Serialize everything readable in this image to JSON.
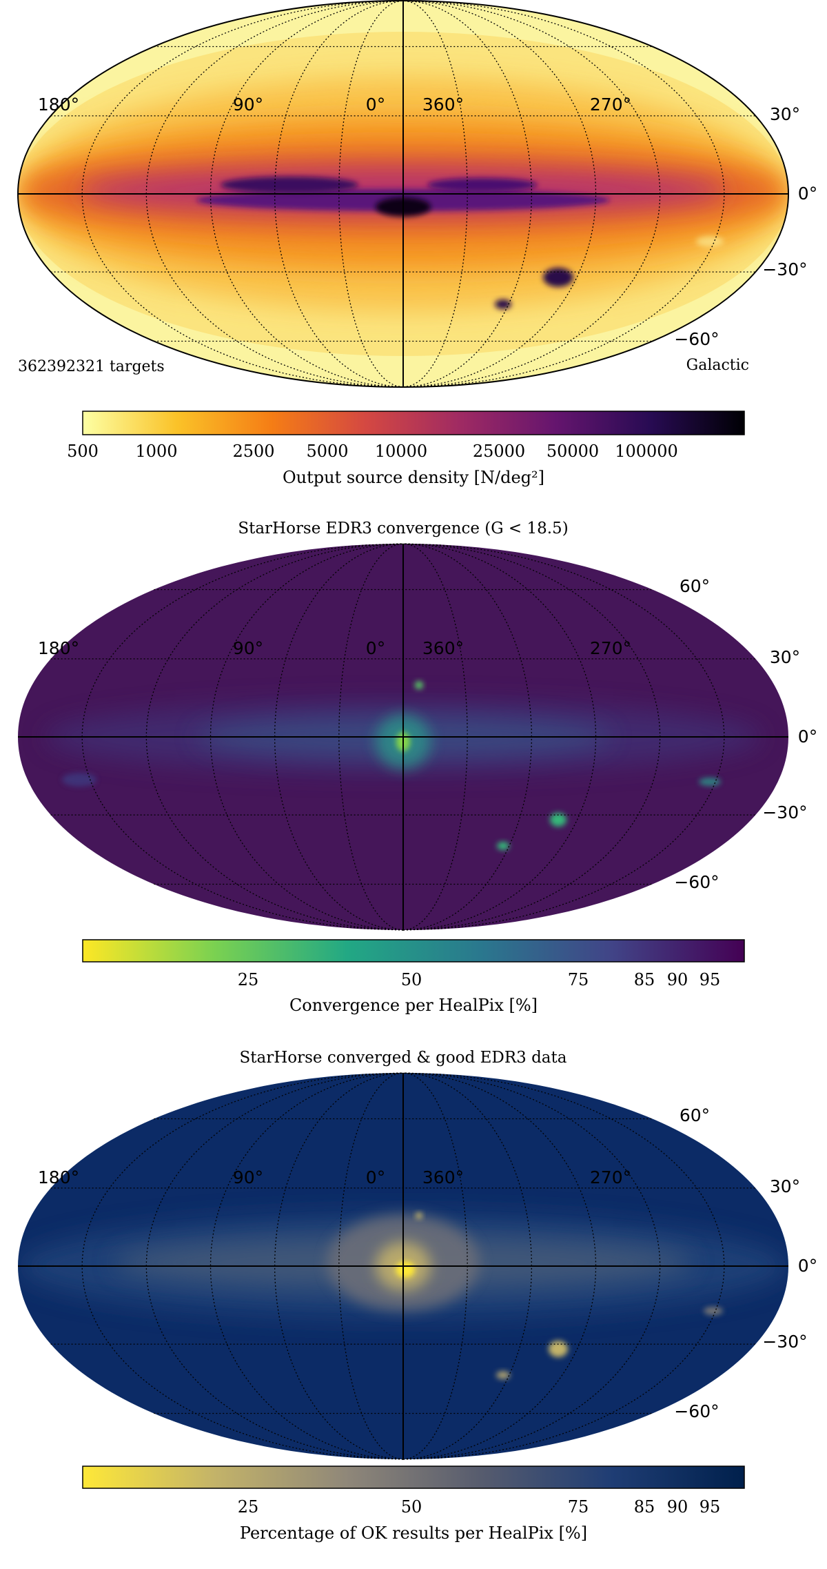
{
  "charts": [
    {
      "title": "",
      "lon_labels": [
        "180°",
        "90°",
        "0°",
        "360°",
        "270°"
      ],
      "lat_labels": [
        "30°",
        "0°",
        "−30°",
        "−60°"
      ],
      "left_note": "362392321 targets",
      "right_note": "Galactic",
      "colorbar": {
        "colors": [
          "#fcffa4",
          "#fac228",
          "#f57d15",
          "#d44842",
          "#9f2a63",
          "#65156e",
          "#280b53",
          "#000004"
        ],
        "ticks": [
          "500",
          "1000",
          "2500",
          "5000",
          "10000",
          "25000",
          "50000",
          "100000"
        ],
        "label": "Output source density [N/deg²]"
      }
    },
    {
      "title": "StarHorse EDR3 convergence (G < 18.5)",
      "lon_labels": [
        "180°",
        "90°",
        "0°",
        "360°",
        "270°"
      ],
      "lat_labels": [
        "60°",
        "30°",
        "0°",
        "−30°",
        "−60°"
      ],
      "left_note": "",
      "right_note": "",
      "colorbar": {
        "colors": [
          "#fde725",
          "#7ad151",
          "#22a884",
          "#2a788e",
          "#414487",
          "#440154"
        ],
        "ticks": [
          "25",
          "50",
          "75",
          "85",
          "90",
          "95"
        ],
        "label": "Convergence per HealPix [%]"
      }
    },
    {
      "title": "StarHorse converged & good EDR3 data",
      "lon_labels": [
        "180°",
        "90°",
        "0°",
        "360°",
        "270°"
      ],
      "lat_labels": [
        "60°",
        "30°",
        "0°",
        "−30°",
        "−60°"
      ],
      "left_note": "",
      "right_note": "",
      "colorbar": {
        "colors": [
          "#fee838",
          "#c3b369",
          "#8f8779",
          "#575c6e",
          "#1f3d74",
          "#00204c"
        ],
        "ticks": [
          "25",
          "50",
          "75",
          "85",
          "90",
          "95"
        ],
        "label": "Percentage of OK results per HealPix [%]"
      }
    }
  ],
  "chart_data": [
    {
      "type": "heatmap",
      "projection": "mollweide",
      "coordinates": "Galactic",
      "title": "",
      "lon_labels": [
        "180°",
        "90°",
        "0°",
        "360°",
        "270°"
      ],
      "lat_labels": [
        "30°",
        "0°",
        "−30°",
        "−60°"
      ],
      "annotation": "362392321 targets",
      "colormap": "inferno_r",
      "color_scale": "log",
      "colorbar_ticks": [
        500,
        1000,
        2500,
        5000,
        10000,
        25000,
        50000,
        100000
      ],
      "colorbar_label": "Output source density [N/deg²]",
      "features": [
        {
          "feature": "galactic plane band",
          "level": "highest"
        },
        {
          "feature": "galactic centre",
          "level": "maximum"
        },
        {
          "feature": "LMC",
          "level": "high"
        },
        {
          "feature": "SMC",
          "level": "high"
        },
        {
          "feature": "high latitude",
          "level": "lowest"
        }
      ]
    },
    {
      "type": "heatmap",
      "projection": "mollweide",
      "coordinates": "Galactic",
      "title": "StarHorse EDR3 convergence (G < 18.5)",
      "lon_labels": [
        "180°",
        "90°",
        "0°",
        "360°",
        "270°"
      ],
      "lat_labels": [
        "60°",
        "30°",
        "0°",
        "−30°",
        "−60°"
      ],
      "colormap": "viridis_r",
      "colorbar_ticks": [
        25,
        50,
        75,
        85,
        90,
        95
      ],
      "colorbar_label": "Convergence per HealPix [%]",
      "features": [
        {
          "feature": "most of sky",
          "level": "high"
        },
        {
          "feature": "galactic plane band",
          "level": "slightly lower"
        },
        {
          "feature": "galactic centre",
          "level": "lowest"
        },
        {
          "feature": "LMC",
          "level": "lower"
        },
        {
          "feature": "SMC",
          "level": "lower"
        }
      ]
    },
    {
      "type": "heatmap",
      "projection": "mollweide",
      "coordinates": "Galactic",
      "title": "StarHorse converged & good EDR3 data",
      "lon_labels": [
        "180°",
        "90°",
        "0°",
        "360°",
        "270°"
      ],
      "lat_labels": [
        "60°",
        "30°",
        "0°",
        "−30°",
        "−60°"
      ],
      "colormap": "cividis_r",
      "colorbar_ticks": [
        25,
        50,
        75,
        85,
        90,
        95
      ],
      "colorbar_label": "Percentage of OK results per HealPix [%]",
      "features": [
        {
          "feature": "most of sky",
          "level": "high"
        },
        {
          "feature": "galactic plane band",
          "level": "lower"
        },
        {
          "feature": "galactic bulge",
          "level": "lowest"
        },
        {
          "feature": "LMC",
          "level": "lower"
        },
        {
          "feature": "SMC",
          "level": "lower"
        }
      ]
    }
  ]
}
